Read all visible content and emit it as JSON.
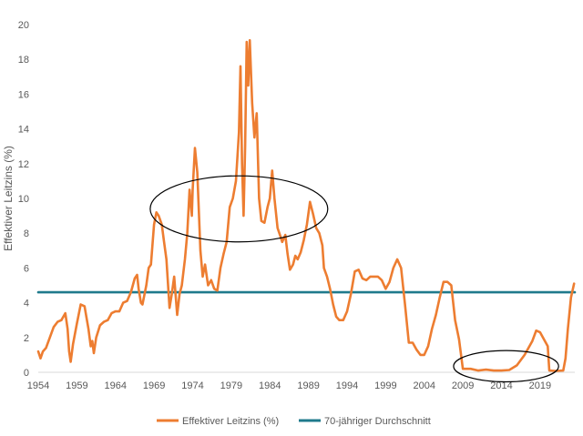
{
  "chart_data": {
    "type": "line",
    "title": "",
    "xlabel": "",
    "ylabel": "Effektiver Leitzins (%)",
    "ylim": [
      0,
      20
    ],
    "yticks": [
      0,
      2,
      4,
      6,
      8,
      10,
      12,
      14,
      16,
      18,
      20
    ],
    "xlim": [
      1954,
      2023.5
    ],
    "xticks": [
      1954,
      1959,
      1964,
      1969,
      1974,
      1979,
      1984,
      1989,
      1994,
      1999,
      2004,
      2009,
      2014,
      2019
    ],
    "grid": false,
    "legend_position": "bottom",
    "series": [
      {
        "name": "Effektiver Leitzins (%)",
        "color": "#ED7D31",
        "points": [
          [
            1954.0,
            1.2
          ],
          [
            1954.3,
            0.8
          ],
          [
            1954.6,
            1.2
          ],
          [
            1955.0,
            1.4
          ],
          [
            1955.5,
            2.0
          ],
          [
            1956.0,
            2.6
          ],
          [
            1956.5,
            2.9
          ],
          [
            1957.0,
            3.0
          ],
          [
            1957.5,
            3.4
          ],
          [
            1957.8,
            2.5
          ],
          [
            1958.0,
            1.2
          ],
          [
            1958.2,
            0.6
          ],
          [
            1958.5,
            1.6
          ],
          [
            1959.0,
            2.8
          ],
          [
            1959.5,
            3.9
          ],
          [
            1960.0,
            3.8
          ],
          [
            1960.5,
            2.5
          ],
          [
            1960.8,
            1.5
          ],
          [
            1961.0,
            1.8
          ],
          [
            1961.2,
            1.1
          ],
          [
            1961.5,
            2.0
          ],
          [
            1962.0,
            2.7
          ],
          [
            1962.5,
            2.9
          ],
          [
            1963.0,
            3.0
          ],
          [
            1963.5,
            3.4
          ],
          [
            1964.0,
            3.5
          ],
          [
            1964.5,
            3.5
          ],
          [
            1965.0,
            4.0
          ],
          [
            1965.5,
            4.1
          ],
          [
            1966.0,
            4.6
          ],
          [
            1966.5,
            5.4
          ],
          [
            1966.8,
            5.6
          ],
          [
            1967.0,
            4.8
          ],
          [
            1967.3,
            4.0
          ],
          [
            1967.5,
            3.9
          ],
          [
            1968.0,
            5.0
          ],
          [
            1968.3,
            6.0
          ],
          [
            1968.6,
            6.2
          ],
          [
            1969.0,
            8.5
          ],
          [
            1969.3,
            9.2
          ],
          [
            1969.6,
            9.0
          ],
          [
            1970.0,
            8.5
          ],
          [
            1970.3,
            7.5
          ],
          [
            1970.6,
            6.5
          ],
          [
            1971.0,
            3.7
          ],
          [
            1971.3,
            4.5
          ],
          [
            1971.6,
            5.5
          ],
          [
            1972.0,
            3.3
          ],
          [
            1972.3,
            4.5
          ],
          [
            1972.6,
            5.0
          ],
          [
            1973.0,
            6.5
          ],
          [
            1973.3,
            8.0
          ],
          [
            1973.6,
            10.5
          ],
          [
            1973.9,
            9.0
          ],
          [
            1974.0,
            10.5
          ],
          [
            1974.3,
            12.9
          ],
          [
            1974.6,
            11.5
          ],
          [
            1975.0,
            7.0
          ],
          [
            1975.3,
            5.5
          ],
          [
            1975.6,
            6.2
          ],
          [
            1976.0,
            5.0
          ],
          [
            1976.4,
            5.3
          ],
          [
            1976.8,
            4.8
          ],
          [
            1977.2,
            4.7
          ],
          [
            1977.6,
            6.0
          ],
          [
            1978.0,
            6.8
          ],
          [
            1978.4,
            7.5
          ],
          [
            1978.8,
            9.5
          ],
          [
            1979.2,
            10.0
          ],
          [
            1979.6,
            11.0
          ],
          [
            1980.0,
            13.8
          ],
          [
            1980.2,
            17.6
          ],
          [
            1980.4,
            12.0
          ],
          [
            1980.6,
            9.0
          ],
          [
            1980.8,
            13.0
          ],
          [
            1981.0,
            19.0
          ],
          [
            1981.2,
            16.5
          ],
          [
            1981.4,
            19.1
          ],
          [
            1981.7,
            15.5
          ],
          [
            1982.0,
            13.5
          ],
          [
            1982.3,
            14.9
          ],
          [
            1982.6,
            10.0
          ],
          [
            1982.9,
            8.7
          ],
          [
            1983.3,
            8.6
          ],
          [
            1983.7,
            9.5
          ],
          [
            1984.0,
            10.0
          ],
          [
            1984.3,
            11.6
          ],
          [
            1984.6,
            10.0
          ],
          [
            1985.0,
            8.3
          ],
          [
            1985.3,
            7.9
          ],
          [
            1985.6,
            7.5
          ],
          [
            1986.0,
            7.9
          ],
          [
            1986.3,
            6.8
          ],
          [
            1986.6,
            5.9
          ],
          [
            1987.0,
            6.2
          ],
          [
            1987.3,
            6.7
          ],
          [
            1987.6,
            6.5
          ],
          [
            1988.0,
            6.9
          ],
          [
            1988.4,
            7.6
          ],
          [
            1988.8,
            8.5
          ],
          [
            1989.2,
            9.8
          ],
          [
            1989.6,
            9.1
          ],
          [
            1990.0,
            8.3
          ],
          [
            1990.4,
            8.0
          ],
          [
            1990.8,
            7.3
          ],
          [
            1991.0,
            6.0
          ],
          [
            1991.4,
            5.5
          ],
          [
            1991.8,
            4.8
          ],
          [
            1992.2,
            3.9
          ],
          [
            1992.6,
            3.2
          ],
          [
            1993.0,
            3.0
          ],
          [
            1993.5,
            3.0
          ],
          [
            1994.0,
            3.5
          ],
          [
            1994.5,
            4.5
          ],
          [
            1995.0,
            5.8
          ],
          [
            1995.5,
            5.9
          ],
          [
            1996.0,
            5.4
          ],
          [
            1996.5,
            5.3
          ],
          [
            1997.0,
            5.5
          ],
          [
            1997.5,
            5.5
          ],
          [
            1998.0,
            5.5
          ],
          [
            1998.5,
            5.3
          ],
          [
            1999.0,
            4.8
          ],
          [
            1999.5,
            5.2
          ],
          [
            2000.0,
            6.0
          ],
          [
            2000.5,
            6.5
          ],
          [
            2001.0,
            6.0
          ],
          [
            2001.5,
            3.9
          ],
          [
            2002.0,
            1.7
          ],
          [
            2002.5,
            1.7
          ],
          [
            2003.0,
            1.3
          ],
          [
            2003.5,
            1.0
          ],
          [
            2004.0,
            1.0
          ],
          [
            2004.5,
            1.5
          ],
          [
            2005.0,
            2.5
          ],
          [
            2005.5,
            3.3
          ],
          [
            2006.0,
            4.3
          ],
          [
            2006.5,
            5.2
          ],
          [
            2007.0,
            5.2
          ],
          [
            2007.5,
            5.0
          ],
          [
            2008.0,
            3.0
          ],
          [
            2008.5,
            1.9
          ],
          [
            2009.0,
            0.2
          ],
          [
            2010.0,
            0.2
          ],
          [
            2011.0,
            0.1
          ],
          [
            2012.0,
            0.15
          ],
          [
            2013.0,
            0.1
          ],
          [
            2014.0,
            0.1
          ],
          [
            2015.0,
            0.13
          ],
          [
            2016.0,
            0.4
          ],
          [
            2017.0,
            1.0
          ],
          [
            2018.0,
            1.8
          ],
          [
            2018.5,
            2.4
          ],
          [
            2019.0,
            2.3
          ],
          [
            2019.5,
            1.9
          ],
          [
            2020.0,
            1.5
          ],
          [
            2020.2,
            0.1
          ],
          [
            2021.0,
            0.08
          ],
          [
            2022.0,
            0.1
          ],
          [
            2022.3,
            0.8
          ],
          [
            2022.6,
            2.5
          ],
          [
            2023.0,
            4.3
          ],
          [
            2023.4,
            5.1
          ]
        ]
      },
      {
        "name": "70-jähriger Durchschnitt",
        "color": "#1F7A8C",
        "points": [
          [
            1954.0,
            4.6
          ],
          [
            2023.5,
            4.6
          ]
        ]
      }
    ],
    "annotations": [
      {
        "type": "ellipse",
        "center": [
          1980.0,
          9.4
        ],
        "radius_x_years": 11.5,
        "radius_y_percent": 1.9,
        "color": "#000000"
      },
      {
        "type": "ellipse",
        "center": [
          2014.6,
          0.35
        ],
        "radius_x_years": 6.8,
        "radius_y_percent": 0.9,
        "color": "#000000"
      }
    ]
  }
}
